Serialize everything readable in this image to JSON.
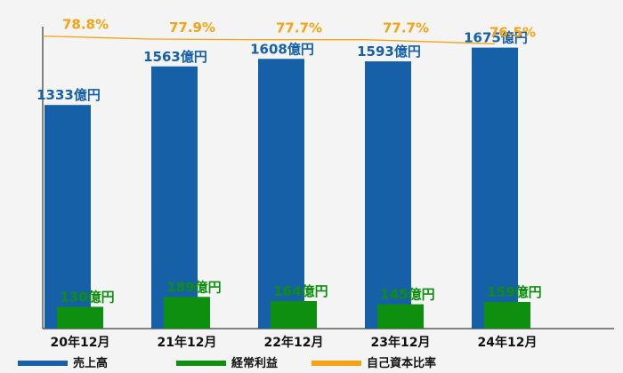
{
  "chart_data": {
    "type": "bar",
    "categories": [
      "20年12月",
      "21年12月",
      "22年12月",
      "23年12月",
      "24年12月"
    ],
    "series": [
      {
        "name": "売上高",
        "kind": "bar",
        "values": [
          1333,
          1563,
          1608,
          1593,
          1675
        ],
        "labels": [
          "1333億円",
          "1563億円",
          "1608億円",
          "1593億円",
          "1675億円"
        ]
      },
      {
        "name": "経常利益",
        "kind": "bar",
        "values": [
          130,
          189,
          164,
          145,
          159
        ],
        "labels": [
          "130億円",
          "189億円",
          "164億円",
          "145億円",
          "159億円"
        ]
      },
      {
        "name": "自己資本比率",
        "kind": "line",
        "values": [
          78.8,
          77.9,
          77.7,
          77.7,
          76.5
        ],
        "labels": [
          "78.8%",
          "77.9%",
          "77.7%",
          "77.7%",
          "76.5%"
        ]
      }
    ],
    "ylim": [
      0,
      1800
    ],
    "line_ylim": [
      0,
      100
    ],
    "grid": false,
    "legend_position": "bottom-left",
    "colors": {
      "sales": "#1560a7",
      "profit": "#0f8f0f",
      "ratio": "#f5a313",
      "background": "#f4f4f4",
      "axis": "#111111"
    }
  }
}
